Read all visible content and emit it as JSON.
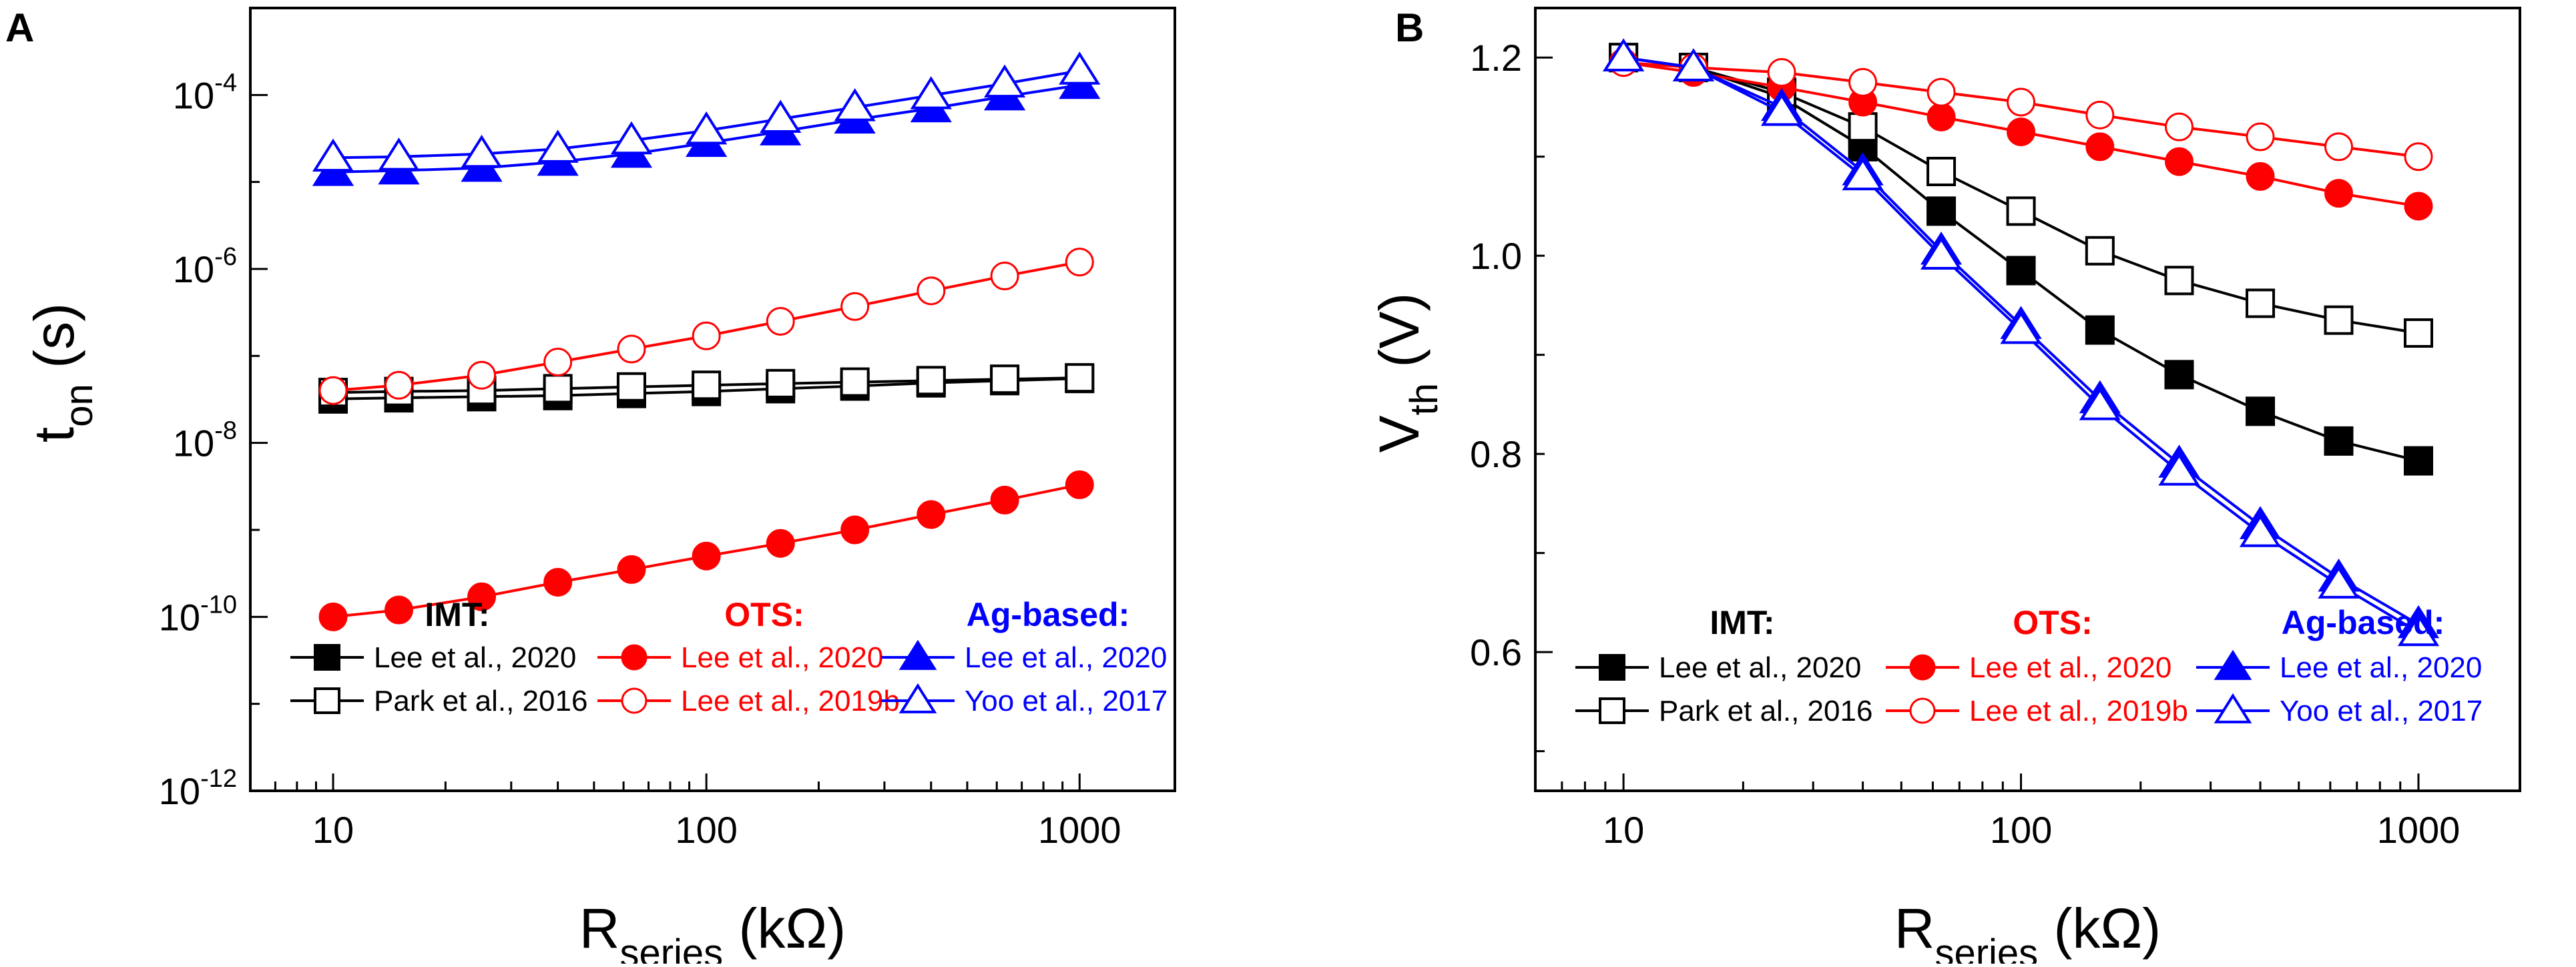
{
  "chart_data": [
    {
      "panel": "A",
      "type": "line",
      "xscale": "log",
      "yscale": "log",
      "xlim": [
        6,
        1800
      ],
      "ylim": [
        1e-12,
        0.001
      ],
      "xticks": [
        {
          "value": 10,
          "label": "10"
        },
        {
          "value": 100,
          "label": "100"
        },
        {
          "value": 1000,
          "label": "1000"
        }
      ],
      "yticks": [
        {
          "value": 1e-12,
          "base": "10",
          "exp": "-12"
        },
        {
          "value": 1e-10,
          "base": "10",
          "exp": "-10"
        },
        {
          "value": 1e-08,
          "base": "10",
          "exp": "-8"
        },
        {
          "value": 1e-06,
          "base": "10",
          "exp": "-6"
        },
        {
          "value": 0.0001,
          "base": "10",
          "exp": "-4"
        }
      ],
      "xlabel": {
        "main": "R",
        "sub": "series",
        "unit": " (kΩ)"
      },
      "ylabel": {
        "main": "t",
        "sub": "on",
        "unit": " (s)"
      },
      "x": [
        10,
        15,
        25,
        40,
        63,
        100,
        158,
        250,
        400,
        630,
        1000
      ],
      "series": [
        {
          "name": "Lee et al., 2020",
          "group": "IMT",
          "color": "#000000",
          "marker": "square",
          "filled": true,
          "values": [
            3.2e-08,
            3.3e-08,
            3.4e-08,
            3.5e-08,
            3.7e-08,
            3.9e-08,
            4.2e-08,
            4.5e-08,
            4.9e-08,
            5.2e-08,
            5.5e-08
          ]
        },
        {
          "name": "Park et al., 2016",
          "group": "IMT",
          "color": "#000000",
          "marker": "square",
          "filled": false,
          "values": [
            3.8e-08,
            3.9e-08,
            4e-08,
            4.2e-08,
            4.4e-08,
            4.6e-08,
            4.8e-08,
            5e-08,
            5.2e-08,
            5.4e-08,
            5.6e-08
          ]
        },
        {
          "name": "Lee et al., 2020",
          "group": "OTS",
          "color": "#ff0000",
          "marker": "circle",
          "filled": true,
          "values": [
            1e-10,
            1.2e-10,
            1.7e-10,
            2.5e-10,
            3.5e-10,
            5e-10,
            7e-10,
            1e-09,
            1.5e-09,
            2.2e-09,
            3.3e-09
          ]
        },
        {
          "name": "Lee et al., 2019b",
          "group": "OTS",
          "color": "#ff0000",
          "marker": "circle",
          "filled": false,
          "values": [
            4e-08,
            4.6e-08,
            6e-08,
            8.5e-08,
            1.2e-07,
            1.7e-07,
            2.5e-07,
            3.7e-07,
            5.6e-07,
            8.3e-07,
            1.2e-06
          ]
        },
        {
          "name": "Lee et al., 2020",
          "group": "Ag-based",
          "color": "#0000ff",
          "marker": "triangle",
          "filled": true,
          "values": [
            1.3e-05,
            1.35e-05,
            1.45e-05,
            1.7e-05,
            2.1e-05,
            2.8e-05,
            3.8e-05,
            5.2e-05,
            7e-05,
            9.6e-05,
            0.00013
          ]
        },
        {
          "name": "Yoo et al., 2017",
          "group": "Ag-based",
          "color": "#0000ff",
          "marker": "triangle",
          "filled": false,
          "values": [
            1.9e-05,
            1.95e-05,
            2.1e-05,
            2.4e-05,
            3e-05,
            3.9e-05,
            5.3e-05,
            7.2e-05,
            9.9e-05,
            0.000135,
            0.00019
          ]
        }
      ],
      "legend": {
        "headers": [
          {
            "text": "IMT:",
            "color": "#000000"
          },
          {
            "text": "OTS:",
            "color": "#ff0000"
          },
          {
            "text": "Ag-based:",
            "color": "#0000ff"
          }
        ],
        "placement": "bottom"
      }
    },
    {
      "panel": "B",
      "type": "line",
      "xscale": "log",
      "yscale": "linear",
      "xlim": [
        6,
        1800
      ],
      "ylim": [
        0.46,
        1.25
      ],
      "xticks": [
        {
          "value": 10,
          "label": "10"
        },
        {
          "value": 100,
          "label": "100"
        },
        {
          "value": 1000,
          "label": "1000"
        }
      ],
      "yticks": [
        {
          "value": 0.6,
          "label": "0.6"
        },
        {
          "value": 0.8,
          "label": "0.8"
        },
        {
          "value": 1.0,
          "label": "1.0"
        },
        {
          "value": 1.2,
          "label": "1.2"
        }
      ],
      "xlabel": {
        "main": "R",
        "sub": "series",
        "unit": " (kΩ)"
      },
      "ylabel": {
        "main": "V",
        "sub": "th",
        "unit": " (V)"
      },
      "x": [
        10,
        15,
        25,
        40,
        63,
        100,
        158,
        250,
        400,
        630,
        1000
      ],
      "series": [
        {
          "name": "Lee et al., 2020",
          "group": "IMT",
          "color": "#000000",
          "marker": "square",
          "filled": true,
          "values": [
            1.2,
            1.19,
            1.16,
            1.11,
            1.045,
            0.985,
            0.925,
            0.88,
            0.843,
            0.813,
            0.793
          ]
        },
        {
          "name": "Park et al., 2016",
          "group": "IMT",
          "color": "#000000",
          "marker": "square",
          "filled": false,
          "values": [
            1.2,
            1.19,
            1.165,
            1.13,
            1.085,
            1.045,
            1.005,
            0.975,
            0.952,
            0.935,
            0.922
          ]
        },
        {
          "name": "Lee et al., 2020",
          "group": "OTS",
          "color": "#ff0000",
          "marker": "circle",
          "filled": true,
          "values": [
            1.195,
            1.185,
            1.17,
            1.155,
            1.14,
            1.125,
            1.11,
            1.095,
            1.08,
            1.063,
            1.05
          ]
        },
        {
          "name": "Lee et al., 2019b",
          "group": "OTS",
          "color": "#ff0000",
          "marker": "circle",
          "filled": false,
          "values": [
            1.195,
            1.19,
            1.185,
            1.175,
            1.165,
            1.155,
            1.142,
            1.13,
            1.12,
            1.11,
            1.1
          ]
        },
        {
          "name": "Lee et al., 2020",
          "group": "Ag-based",
          "color": "#0000ff",
          "marker": "triangle",
          "filled": true,
          "values": [
            1.2,
            1.19,
            1.15,
            1.085,
            1.005,
            0.93,
            0.855,
            0.79,
            0.728,
            0.675,
            0.628
          ]
        },
        {
          "name": "Yoo et al., 2017",
          "group": "Ag-based",
          "color": "#0000ff",
          "marker": "triangle",
          "filled": false,
          "values": [
            1.2,
            1.19,
            1.145,
            1.08,
            1.0,
            0.925,
            0.848,
            0.782,
            0.72,
            0.668,
            0.62
          ]
        }
      ],
      "legend": {
        "headers": [
          {
            "text": "IMT:",
            "color": "#000000"
          },
          {
            "text": "OTS:",
            "color": "#ff0000"
          },
          {
            "text": "Ag-based:",
            "color": "#0000ff"
          }
        ],
        "placement": "bottom"
      }
    }
  ]
}
